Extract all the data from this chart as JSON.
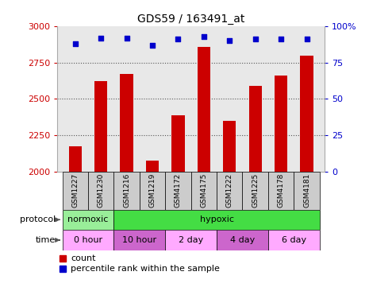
{
  "title": "GDS59 / 163491_at",
  "samples": [
    "GSM1227",
    "GSM1230",
    "GSM1216",
    "GSM1219",
    "GSM4172",
    "GSM4175",
    "GSM1222",
    "GSM1225",
    "GSM4178",
    "GSM4181"
  ],
  "counts": [
    2175,
    2620,
    2670,
    2075,
    2390,
    2860,
    2350,
    2590,
    2660,
    2800
  ],
  "percentiles": [
    88,
    92,
    92,
    87,
    91,
    93,
    90,
    91,
    91,
    91
  ],
  "ylim_left": [
    2000,
    3000
  ],
  "ylim_right": [
    0,
    100
  ],
  "yticks_left": [
    2000,
    2250,
    2500,
    2750,
    3000
  ],
  "yticks_right": [
    0,
    25,
    50,
    75,
    100
  ],
  "bar_color": "#cc0000",
  "dot_color": "#0000cc",
  "protocol_labels": [
    "normoxic",
    "hypoxic"
  ],
  "protocol_colors": [
    "#99ee99",
    "#44dd44"
  ],
  "time_labels": [
    "0 hour",
    "10 hour",
    "2 day",
    "4 day",
    "6 day"
  ],
  "time_colors": [
    "#ffaaff",
    "#cc66cc",
    "#ffaaff",
    "#cc66cc",
    "#ffaaff"
  ],
  "left_tick_color": "#cc0000",
  "right_tick_color": "#0000cc",
  "grid_color": "#555555",
  "bg_color": "#e8e8e8",
  "sample_bg_color": "#cccccc",
  "legend_count_label": "count",
  "legend_pct_label": "percentile rank within the sample"
}
